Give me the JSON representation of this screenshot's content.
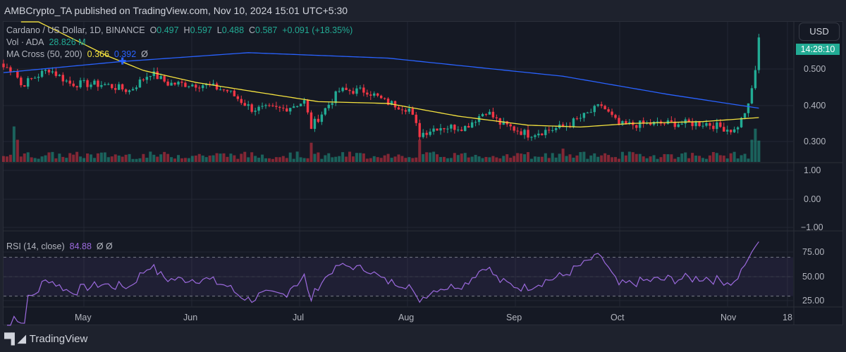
{
  "header": {
    "published": "AMBCrypto_TA published on TradingView.com, Nov 10, 2024 15:01 UTC+5:30"
  },
  "legend": {
    "symbol": "Cardano / US Dollar, 1D, BINANCE",
    "o_label": "O",
    "o": "0.497",
    "h_label": "H",
    "h": "0.597",
    "l_label": "L",
    "l": "0.488",
    "c_label": "C",
    "c": "0.587",
    "change": "+0.091 (+18.35%)",
    "vol_label": "Vol · ADA",
    "vol": "28.826 M",
    "ma_label": "MA Cross (50, 200)",
    "ma50": "0.366",
    "ma200": "0.392",
    "ma_extra": "Ø",
    "rsi_label": "RSI (14, close)",
    "rsi": "84.88",
    "rsi_extra": "Ø Ø"
  },
  "price_scale": {
    "currency": "USD",
    "countdown": "14:28:10",
    "ticks": [
      "0.500",
      "0.400",
      "0.300"
    ]
  },
  "empty_pane_scale": [
    "1.00",
    "0.00",
    "−1.00"
  ],
  "rsi_scale": [
    "75.00",
    "50.00",
    "25.00"
  ],
  "time_axis": [
    "May",
    "Jun",
    "Jul",
    "Aug",
    "Sep",
    "Oct",
    "Nov",
    "18"
  ],
  "footer": {
    "brand": "TradingView"
  },
  "colors": {
    "up": "#22ab94",
    "down": "#f23645",
    "ma50": "#f5e33f",
    "ma200": "#2962ff",
    "rsi": "#9c6ade"
  },
  "chart_data": {
    "type": "candlestick",
    "symbol": "ADA/USD",
    "interval": "1D",
    "start": "2024-04-08",
    "end": "2024-11-10",
    "close_keypoints": [
      [
        0,
        0.505
      ],
      [
        3,
        0.5
      ],
      [
        5,
        0.455
      ],
      [
        13,
        0.5
      ],
      [
        19,
        0.46
      ],
      [
        29,
        0.457
      ],
      [
        36,
        0.44
      ],
      [
        42,
        0.49
      ],
      [
        47,
        0.46
      ],
      [
        57,
        0.457
      ],
      [
        64,
        0.44
      ],
      [
        71,
        0.39
      ],
      [
        80,
        0.39
      ],
      [
        86,
        0.41
      ],
      [
        88,
        0.34
      ],
      [
        96,
        0.44
      ],
      [
        104,
        0.44
      ],
      [
        109,
        0.41
      ],
      [
        116,
        0.39
      ],
      [
        119,
        0.32
      ],
      [
        124,
        0.34
      ],
      [
        132,
        0.34
      ],
      [
        138,
        0.385
      ],
      [
        142,
        0.35
      ],
      [
        150,
        0.32
      ],
      [
        160,
        0.34
      ],
      [
        166,
        0.37
      ],
      [
        171,
        0.4
      ],
      [
        176,
        0.345
      ],
      [
        189,
        0.35
      ],
      [
        201,
        0.35
      ],
      [
        209,
        0.33
      ],
      [
        211,
        0.36
      ],
      [
        213,
        0.405
      ],
      [
        214,
        0.447
      ],
      [
        215,
        0.497
      ],
      [
        216,
        0.587
      ]
    ],
    "ma200_keypoints": [
      [
        0,
        0.49
      ],
      [
        33,
        0.52
      ],
      [
        70,
        0.545
      ],
      [
        110,
        0.53
      ],
      [
        160,
        0.48
      ],
      [
        190,
        0.43
      ],
      [
        216,
        0.392
      ]
    ],
    "ma50_keypoints": [
      [
        10,
        0.63
      ],
      [
        30,
        0.535
      ],
      [
        40,
        0.496
      ],
      [
        55,
        0.463
      ],
      [
        70,
        0.44
      ],
      [
        90,
        0.41
      ],
      [
        110,
        0.405
      ],
      [
        130,
        0.37
      ],
      [
        150,
        0.345
      ],
      [
        165,
        0.34
      ],
      [
        180,
        0.35
      ],
      [
        200,
        0.355
      ],
      [
        216,
        0.366
      ]
    ],
    "volume_spikes_m": [
      [
        3,
        48
      ],
      [
        4,
        30
      ],
      [
        88,
        26
      ],
      [
        119,
        30
      ],
      [
        160,
        18
      ],
      [
        214,
        30
      ],
      [
        215,
        45
      ],
      [
        216,
        28.826
      ]
    ],
    "price_range": [
      0.26,
      0.63
    ],
    "rsi_levels": [
      70,
      50,
      30
    ]
  }
}
